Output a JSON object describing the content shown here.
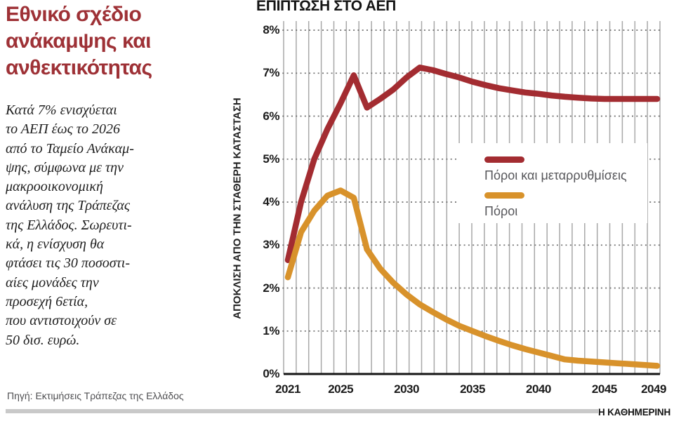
{
  "header": {
    "title_lines": [
      "Εθνικό σχέδιο",
      "ανάκαμψης και",
      "ανθεκτικότητας"
    ]
  },
  "story": {
    "lines": [
      "Κατά 7% ενισχύεται",
      "το ΑΕΠ έως το 2026",
      "από το Ταμείο Ανάκαμ-",
      "ψης, σύμφωνα με την",
      "μακροοικονομική",
      "ανάλυση της Τράπεζας",
      "της Ελλάδος. Σωρευτι-",
      "κά, η ενίσχυση θα",
      "φτάσει τις 30 ποσοστι-",
      "αίες μονάδες την",
      "προσεχή 6ετία,",
      "που αντιστοιχούν σε",
      "50 δισ. ευρώ."
    ]
  },
  "source": {
    "label": "Πηγή: Εκτιμήσεις Τράπεζας της Ελλάδος"
  },
  "brand": {
    "label": "Η ΚΑΘΗΜΕΡΙΝΗ"
  },
  "colors": {
    "title_red": "#9e3136",
    "series_red": "#a32c31",
    "series_orange": "#d8922b",
    "grid_vertical": "#a8a8a8",
    "grid_dotted": "#6e6e6e",
    "axis_black": "#141414",
    "legend_text": "#56565a",
    "footer_bar": "#c9c9c9"
  },
  "chart_data": {
    "type": "line",
    "title": "ΕΠΙΠΤΩΣΗ ΣΤΟ ΑΕΠ",
    "xlabel": "",
    "ylabel": "ΑΠΟΚΛΙΣΗ ΑΠΟ ΤΗΝ ΣΤΑΘΕΡΗ ΚΑΤΑΣΤΑΣΗ",
    "ylim": [
      0,
      8
    ],
    "xlim": [
      2021,
      2049
    ],
    "y_ticks": [
      "8%",
      "7%",
      "6%",
      "5%",
      "4%",
      "3%",
      "2%",
      "1%",
      "0%"
    ],
    "x_ticks": [
      2021,
      2025,
      2030,
      2035,
      2040,
      2045,
      2049
    ],
    "grid": {
      "vertical": "solid, one line per year",
      "horizontal": "dotted, every 1%"
    },
    "legend_position": "inside-right",
    "x": [
      2021,
      2022,
      2023,
      2024,
      2025,
      2026,
      2027,
      2028,
      2029,
      2030,
      2031,
      2032,
      2033,
      2034,
      2035,
      2036,
      2037,
      2038,
      2039,
      2040,
      2041,
      2042,
      2043,
      2044,
      2045,
      2046,
      2047,
      2048,
      2049
    ],
    "series": [
      {
        "name": "Πόροι και μεταρρυθμίσεις",
        "color": "#a32c31",
        "values": [
          2.65,
          4.0,
          5.0,
          5.7,
          6.3,
          6.95,
          6.2,
          6.4,
          6.62,
          6.9,
          7.13,
          7.07,
          6.98,
          6.9,
          6.8,
          6.72,
          6.65,
          6.6,
          6.55,
          6.52,
          6.48,
          6.45,
          6.43,
          6.41,
          6.4,
          6.4,
          6.4,
          6.4,
          6.4
        ]
      },
      {
        "name": "Πόροι",
        "color": "#d8922b",
        "values": [
          2.25,
          3.3,
          3.8,
          4.15,
          4.27,
          4.1,
          2.9,
          2.45,
          2.12,
          1.85,
          1.62,
          1.44,
          1.27,
          1.12,
          1.0,
          0.88,
          0.77,
          0.67,
          0.58,
          0.5,
          0.42,
          0.34,
          0.31,
          0.29,
          0.27,
          0.25,
          0.23,
          0.21,
          0.19
        ]
      }
    ]
  }
}
